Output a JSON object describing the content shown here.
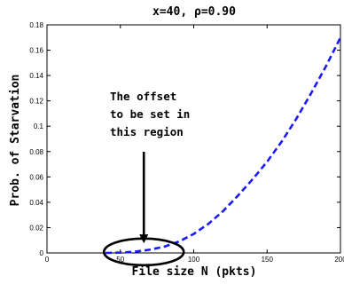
{
  "chart_data": {
    "type": "line",
    "title": "x=40, ρ=0.90",
    "xlabel": "File size N (pkts)",
    "ylabel": "Prob. of Starvation",
    "xlim": [
      0,
      200
    ],
    "ylim": [
      0,
      0.18
    ],
    "xticks": [
      "0",
      "50",
      "100",
      "150",
      "200"
    ],
    "yticks": [
      "0",
      "0.02",
      "0.04",
      "0.06",
      "0.08",
      "0.1",
      "0.12",
      "0.14",
      "0.16",
      "0.18"
    ],
    "series": [
      {
        "style": "dashed",
        "color": "#1a1aff",
        "x": [
          40,
          50,
          60,
          70,
          80,
          90,
          100,
          110,
          120,
          130,
          140,
          150,
          160,
          170,
          180,
          190,
          200
        ],
        "y": [
          0.0,
          0.0003,
          0.001,
          0.0025,
          0.005,
          0.009,
          0.015,
          0.023,
          0.033,
          0.045,
          0.058,
          0.072,
          0.088,
          0.106,
          0.126,
          0.147,
          0.17
        ]
      }
    ],
    "annotation": {
      "lines": [
        "The offset",
        "to be set in",
        "this region"
      ],
      "arrow_target": [
        66,
        0.0055
      ],
      "ellipse_center": [
        66,
        0.0008
      ]
    },
    "grid": false,
    "legend": "none"
  }
}
